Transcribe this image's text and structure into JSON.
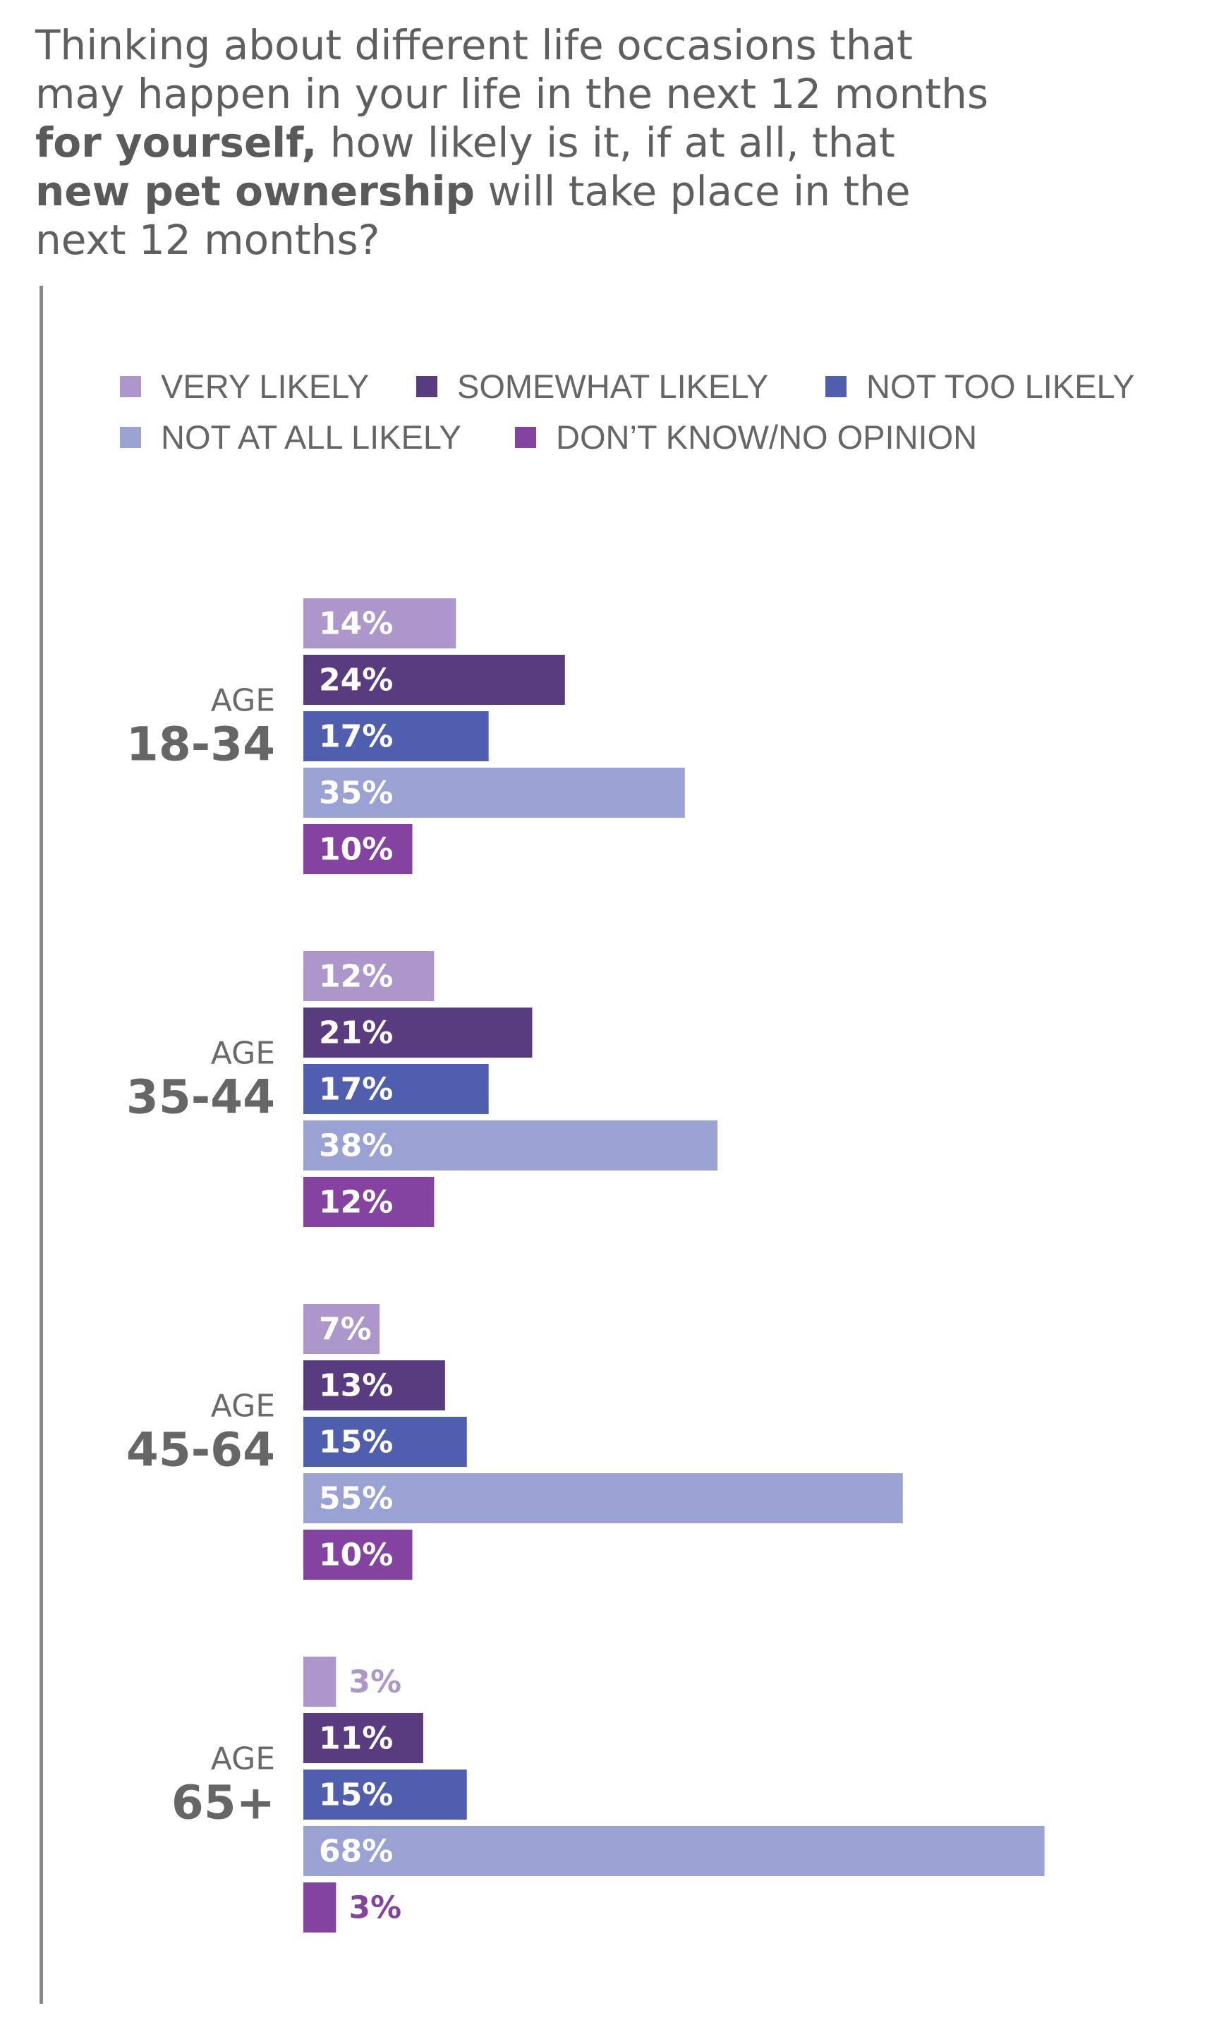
{
  "question": {
    "line1": "Thinking about different life occasions that",
    "line2": "may happen in your life in the next 12 months",
    "line3_bold": "for yourself,",
    "line3_rest": " how likely is it, if at all, that",
    "line4_bold": "new pet ownership",
    "line4_rest": " will take place in the",
    "line5": "next 12 months?"
  },
  "legend": [
    {
      "label": "VERY LIKELY",
      "color": "#ad96c9"
    },
    {
      "label": "SOMEWHAT LIKELY",
      "color": "#593b80"
    },
    {
      "label": "NOT TOO LIKELY",
      "color": "#4f5fae"
    },
    {
      "label": "NOT AT ALL LIKELY",
      "color": "#9aa2d4"
    },
    {
      "label": "DON’T KNOW/NO OPINION",
      "color": "#8442a1"
    }
  ],
  "chart_data": {
    "type": "bar",
    "orientation": "horizontal",
    "unit": "%",
    "categories": [
      {
        "prefix": "AGE",
        "range": "18-34"
      },
      {
        "prefix": "AGE",
        "range": "35-44"
      },
      {
        "prefix": "AGE",
        "range": "45-64"
      },
      {
        "prefix": "AGE",
        "range": "65+"
      }
    ],
    "series": [
      {
        "name": "VERY LIKELY",
        "color": "#ad96c9",
        "values": [
          14,
          12,
          7,
          3
        ]
      },
      {
        "name": "SOMEWHAT LIKELY",
        "color": "#593b80",
        "values": [
          24,
          21,
          13,
          11
        ]
      },
      {
        "name": "NOT TOO LIKELY",
        "color": "#4f5fae",
        "values": [
          17,
          17,
          15,
          15
        ]
      },
      {
        "name": "NOT AT ALL LIKELY",
        "color": "#9aa2d4",
        "values": [
          35,
          38,
          55,
          68
        ]
      },
      {
        "name": "DON’T KNOW/NO OPINION",
        "color": "#8442a1",
        "values": [
          10,
          12,
          10,
          3
        ]
      }
    ],
    "xlim": [
      0,
      70
    ],
    "grid": false,
    "legend_position": "top"
  }
}
